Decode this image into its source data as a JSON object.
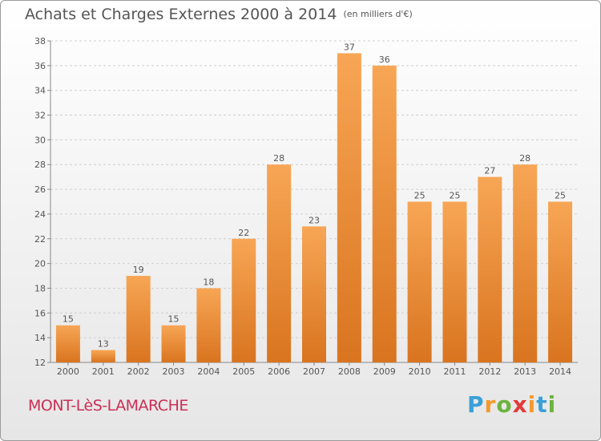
{
  "title": "Achats et Charges Externes 2000 à 2014",
  "subtitle": "(en milliers d'€)",
  "commune": "MONT-LèS-LAMARCHE",
  "brand": {
    "letters": [
      "P",
      "r",
      "o",
      "x",
      "i",
      "t",
      "i"
    ],
    "colors": [
      "#3aa0d8",
      "#f29a2e",
      "#6db33f",
      "#e23a3a",
      "#f29a2e",
      "#3aa0d8",
      "#6db33f"
    ]
  },
  "colors": {
    "bar_top": "#f7a655",
    "bar_bottom": "#d9741f",
    "commune": "#cc2e55"
  },
  "chart_data": {
    "type": "bar",
    "categories": [
      "2000",
      "2001",
      "2002",
      "2003",
      "2004",
      "2005",
      "2006",
      "2007",
      "2008",
      "2009",
      "2010",
      "2011",
      "2012",
      "2013",
      "2014"
    ],
    "values": [
      15,
      13,
      19,
      15,
      18,
      22,
      28,
      23,
      37,
      36,
      25,
      25,
      27,
      28,
      25
    ],
    "ylim": [
      12,
      38
    ],
    "yticks": [
      12,
      14,
      16,
      18,
      20,
      22,
      24,
      26,
      28,
      30,
      32,
      34,
      36,
      38
    ],
    "grid": true,
    "data_labels": true
  }
}
